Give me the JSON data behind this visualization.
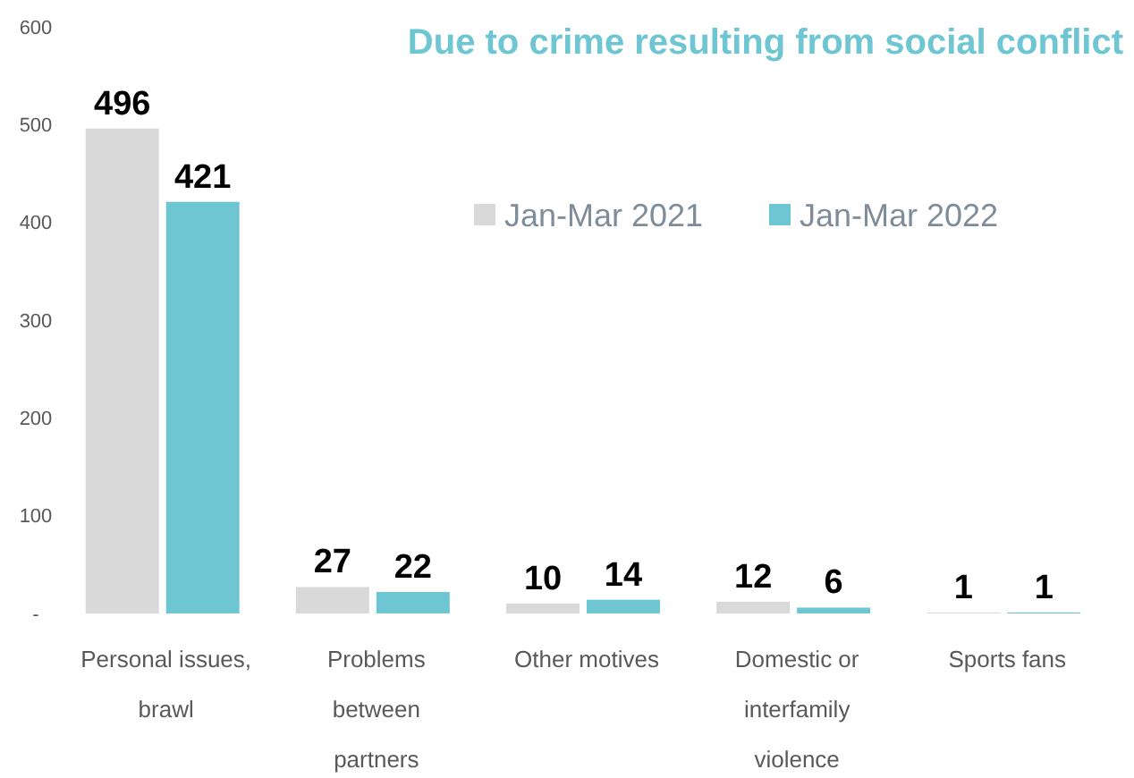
{
  "chart_data": {
    "type": "bar",
    "title": "Due to crime resulting from social conflict",
    "categories": [
      "Personal issues, brawl",
      "Problems between partners",
      "Other motives",
      "Domestic or interfamily violence",
      "Sports fans"
    ],
    "series": [
      {
        "name": "Jan-Mar 2021",
        "color": "#d9d9d9",
        "values": [
          496,
          27,
          10,
          12,
          1
        ]
      },
      {
        "name": "Jan-Mar 2022",
        "color": "#6ec6d2",
        "values": [
          421,
          22,
          14,
          6,
          1
        ]
      }
    ],
    "ylim": [
      0,
      600
    ],
    "yticks": [
      {
        "value": 0,
        "label": "-"
      },
      100,
      200,
      300,
      400,
      500,
      600
    ],
    "grid": false,
    "legend": "top right",
    "data_labels": true
  }
}
